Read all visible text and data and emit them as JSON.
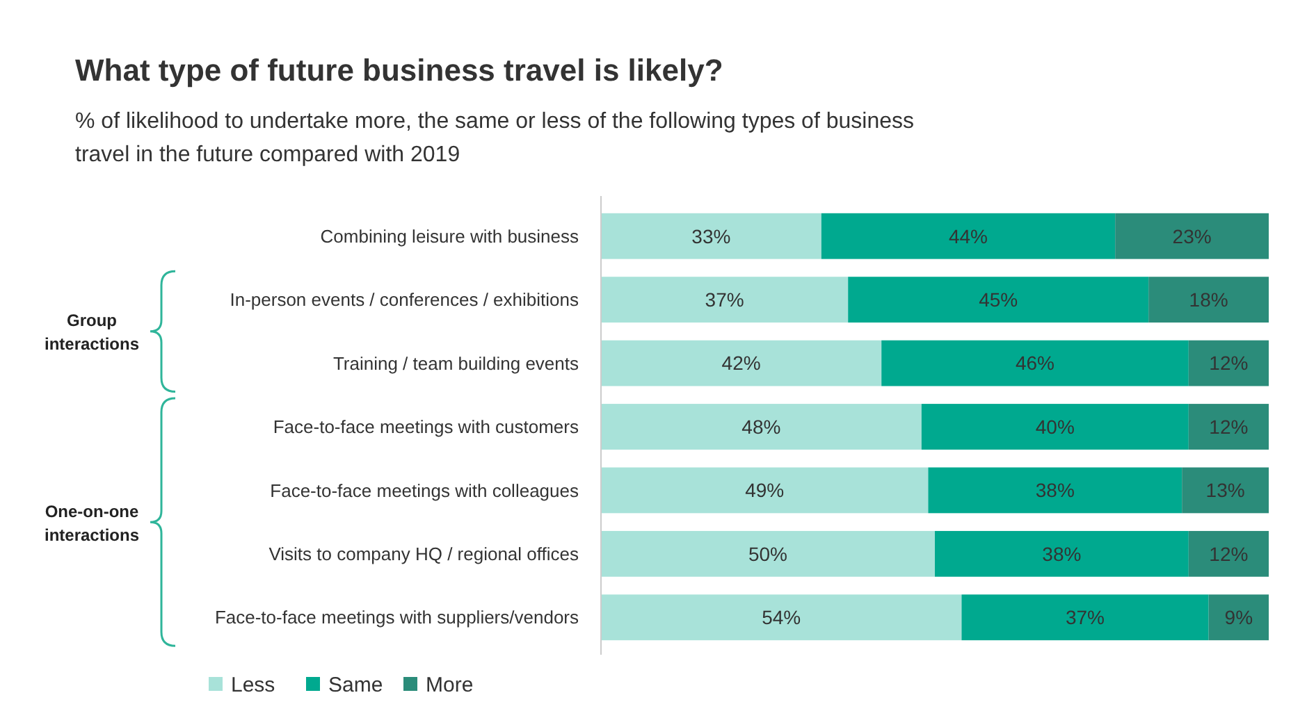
{
  "chart_data": {
    "type": "bar",
    "orientation": "horizontal",
    "stacked": true,
    "title": "What type of future business travel is likely?",
    "subtitle": "% of likelihood to undertake more, the same or less of the following types of business travel in the future compared with 2019",
    "categories": [
      "Combining leisure with business",
      "In-person events / conferences / exhibitions",
      "Training / team building events",
      "Face-to-face meetings with customers",
      "Face-to-face meetings with colleagues",
      "Visits to company HQ / regional offices",
      "Face-to-face meetings with suppliers/vendors"
    ],
    "series": [
      {
        "name": "Less",
        "color": "#a8e2d9",
        "values": [
          33,
          37,
          42,
          48,
          49,
          50,
          54
        ],
        "value_labels": [
          "33%",
          "37%",
          "42%",
          "48%",
          "49%",
          "50%",
          "54%"
        ]
      },
      {
        "name": "Same",
        "color": "#00a98f",
        "values": [
          44,
          45,
          46,
          40,
          38,
          38,
          37
        ],
        "value_labels": [
          "44%",
          "45%",
          "46%",
          "40%",
          "38%",
          "38%",
          "37%"
        ]
      },
      {
        "name": "More",
        "color": "#2b8c7a",
        "values": [
          23,
          18,
          12,
          12,
          13,
          12,
          9
        ],
        "value_labels": [
          "23%",
          "18%",
          "12%",
          "12%",
          "13%",
          "12%",
          "9%"
        ]
      }
    ],
    "annotations": [
      "Group interactions",
      "One-on-one interactions"
    ],
    "legend": "bottom left"
  }
}
